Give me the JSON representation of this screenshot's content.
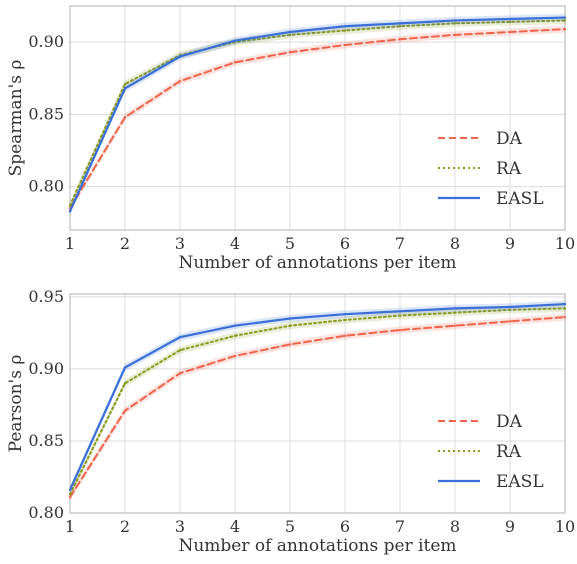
{
  "chart_data": [
    {
      "type": "line",
      "xlabel": "Number of annotations per item",
      "ylabel": "Spearman's ρ",
      "x": [
        1,
        2,
        3,
        4,
        5,
        6,
        7,
        8,
        9,
        10
      ],
      "x_ticks": [
        1,
        2,
        3,
        4,
        5,
        6,
        7,
        8,
        9,
        10
      ],
      "xlim": [
        1,
        10
      ],
      "ylim": [
        0.77,
        0.925
      ],
      "y_ticks": [
        0.8,
        0.85,
        0.9
      ],
      "y_tick_labels": [
        "0.80",
        "0.85",
        "0.90"
      ],
      "grid": true,
      "legend_position": "lower-right",
      "series": [
        {
          "name": "DA",
          "style": "dashed",
          "color": "#f0634b",
          "values": [
            0.785,
            0.848,
            0.873,
            0.886,
            0.893,
            0.898,
            0.902,
            0.905,
            0.907,
            0.909
          ]
        },
        {
          "name": "RA",
          "style": "dotted",
          "color": "#8a9a1e",
          "values": [
            0.787,
            0.871,
            0.891,
            0.9,
            0.905,
            0.908,
            0.911,
            0.913,
            0.914,
            0.915
          ]
        },
        {
          "name": "EASL",
          "style": "solid",
          "color": "#3a6fd8",
          "values": [
            0.783,
            0.868,
            0.89,
            0.901,
            0.907,
            0.911,
            0.913,
            0.915,
            0.916,
            0.917
          ]
        }
      ]
    },
    {
      "type": "line",
      "xlabel": "Number of annotations per item",
      "ylabel": "Pearson's ρ",
      "x": [
        1,
        2,
        3,
        4,
        5,
        6,
        7,
        8,
        9,
        10
      ],
      "x_ticks": [
        1,
        2,
        3,
        4,
        5,
        6,
        7,
        8,
        9,
        10
      ],
      "xlim": [
        1,
        10
      ],
      "ylim": [
        0.8,
        0.952
      ],
      "y_ticks": [
        0.8,
        0.85,
        0.9,
        0.95
      ],
      "y_tick_labels": [
        "0.80",
        "0.85",
        "0.90",
        "0.95"
      ],
      "grid": true,
      "legend_position": "lower-right",
      "series": [
        {
          "name": "DA",
          "style": "dashed",
          "color": "#f0634b",
          "values": [
            0.811,
            0.871,
            0.897,
            0.909,
            0.917,
            0.923,
            0.927,
            0.93,
            0.933,
            0.936
          ]
        },
        {
          "name": "RA",
          "style": "dotted",
          "color": "#8a9a1e",
          "values": [
            0.813,
            0.89,
            0.913,
            0.923,
            0.93,
            0.934,
            0.937,
            0.939,
            0.941,
            0.942
          ]
        },
        {
          "name": "EASL",
          "style": "solid",
          "color": "#3a6fd8",
          "values": [
            0.816,
            0.901,
            0.922,
            0.93,
            0.935,
            0.938,
            0.94,
            0.942,
            0.943,
            0.945
          ]
        }
      ]
    }
  ]
}
